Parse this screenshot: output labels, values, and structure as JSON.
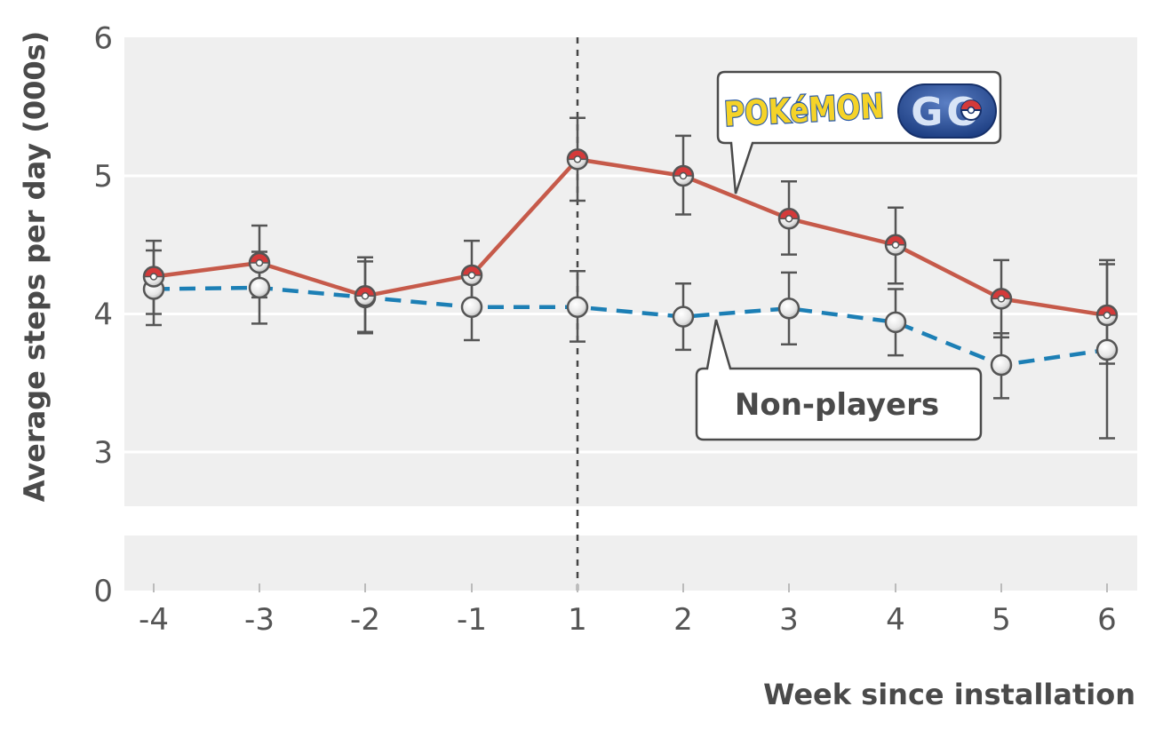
{
  "chart_data": {
    "type": "line",
    "xlabel": "Week since installation",
    "ylabel": "Average steps per day (000s)",
    "x": [
      "-4",
      "-3",
      "-2",
      "-1",
      "1",
      "2",
      "3",
      "4",
      "5",
      "6"
    ],
    "y_ticks": [
      "6",
      "5",
      "4",
      "3",
      "0"
    ],
    "ylim": [
      0,
      6
    ],
    "y_axis_break": true,
    "grid": true,
    "reference_line": {
      "x": "1",
      "style": "dashed"
    },
    "series": [
      {
        "name": "Pokémon GO",
        "style": "solid",
        "color": "#c65a4a",
        "marker": "pokeball",
        "values": [
          4.27,
          4.37,
          4.13,
          4.28,
          5.12,
          5.0,
          4.69,
          4.5,
          4.11,
          3.99
        ],
        "error_low": [
          4.0,
          4.12,
          3.87,
          4.03,
          4.82,
          4.72,
          4.43,
          4.22,
          3.83,
          3.64
        ],
        "error_high": [
          4.53,
          4.64,
          4.41,
          4.53,
          5.42,
          5.29,
          4.96,
          4.77,
          4.39,
          4.39
        ]
      },
      {
        "name": "Non-players",
        "style": "dashed",
        "color": "#1c7fb5",
        "marker": "circle",
        "values": [
          4.18,
          4.19,
          4.12,
          4.05,
          4.05,
          3.98,
          4.04,
          3.94,
          3.63,
          3.74
        ],
        "error_low": [
          3.92,
          3.93,
          3.86,
          3.81,
          3.8,
          3.74,
          3.78,
          3.7,
          3.39,
          3.1
        ],
        "error_high": [
          4.46,
          4.45,
          4.38,
          4.3,
          4.31,
          4.22,
          4.3,
          4.18,
          3.86,
          4.36
        ]
      }
    ],
    "annotations": [
      {
        "text": "POKéMON",
        "target_series": 0
      },
      {
        "text": "GO",
        "target_series": 0
      },
      {
        "text": "Non-players",
        "target_series": 1
      }
    ]
  },
  "colors": {
    "plot_background": "#efefef",
    "gridline": "#ffffff",
    "error_bar": "#555555",
    "pokeball_red": "#d43a3a",
    "logo_yellow": "#f5d328",
    "logo_blue": "#2a5aa8"
  }
}
